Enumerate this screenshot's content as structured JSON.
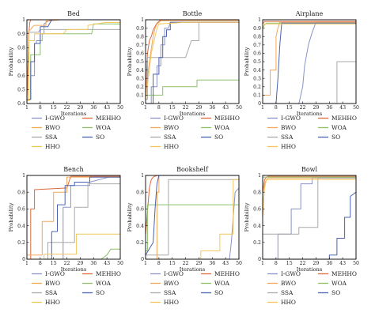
{
  "chart_data": [
    {
      "type": "line",
      "title": "Bed",
      "xlabel": "Iterations",
      "ylabel": "Probability",
      "xlim": [
        1,
        50
      ],
      "ylim": [
        0.4,
        1
      ],
      "xticks": [
        1,
        8,
        15,
        22,
        29,
        36,
        43,
        50
      ],
      "yticks": [
        0.4,
        0.5,
        0.6,
        0.7,
        0.8,
        0.9,
        1
      ],
      "ytick_labels": [
        "0.4",
        "0.5",
        "0.6",
        "0.7",
        "0.8",
        "0.9",
        "1"
      ],
      "series": [
        {
          "name": "I-GWO",
          "x": [
            1,
            3,
            3,
            5,
            5,
            6,
            6,
            8,
            8,
            10,
            10,
            12,
            14,
            50
          ],
          "y": [
            0.43,
            0.43,
            0.6,
            0.6,
            0.83,
            0.83,
            0.85,
            0.85,
            0.9,
            0.9,
            0.97,
            0.99,
            1,
            1
          ]
        },
        {
          "name": "MEHHO",
          "x": [
            1,
            2,
            2.5,
            3,
            50
          ],
          "y": [
            0.42,
            0.9,
            0.98,
            1,
            1
          ]
        },
        {
          "name": "BWO",
          "x": [
            1,
            2,
            2,
            3,
            4,
            5,
            11,
            11,
            19,
            50
          ],
          "y": [
            0.42,
            0.42,
            0.92,
            0.93,
            0.95,
            0.96,
            0.96,
            0.99,
            1,
            1
          ]
        },
        {
          "name": "WOA",
          "x": [
            1,
            3,
            3,
            8,
            8,
            9,
            9,
            35,
            36,
            50
          ],
          "y": [
            0.43,
            0.43,
            0.75,
            0.75,
            0.85,
            0.85,
            0.9,
            0.9,
            0.97,
            0.97
          ]
        },
        {
          "name": "SSA",
          "x": [
            1,
            7,
            8,
            50
          ],
          "y": [
            0.91,
            0.91,
            0.93,
            0.93
          ]
        },
        {
          "name": "SO",
          "x": [
            1,
            3,
            3,
            5,
            5,
            8,
            8,
            12,
            14,
            50
          ],
          "y": [
            0.43,
            0.43,
            0.7,
            0.7,
            0.83,
            0.83,
            0.95,
            0.95,
            1,
            1
          ]
        },
        {
          "name": "HHO",
          "x": [
            1,
            2,
            2,
            5,
            5,
            20,
            22,
            33,
            33,
            42,
            50
          ],
          "y": [
            0.42,
            0.42,
            0.85,
            0.85,
            0.9,
            0.9,
            0.93,
            0.93,
            0.96,
            0.98,
            0.98
          ]
        }
      ]
    },
    {
      "type": "line",
      "title": "Bottle",
      "xlabel": "Iterations",
      "ylabel": "Probability",
      "xlim": [
        1,
        50
      ],
      "ylim": [
        0,
        1
      ],
      "xticks": [
        1,
        8,
        15,
        22,
        29,
        36,
        43,
        50
      ],
      "yticks": [
        0,
        0.1,
        0.2,
        0.3,
        0.4,
        0.5,
        0.6,
        0.7,
        0.8,
        0.9,
        1
      ],
      "ytick_labels": [
        "0",
        "0.1",
        "0.2",
        "0.3",
        "0.4",
        "0.5",
        "0.6",
        "0.7",
        "0.8",
        "0.9",
        "1"
      ],
      "series": [
        {
          "name": "I-GWO",
          "x": [
            1,
            4,
            4,
            7,
            7,
            9,
            9,
            11,
            11,
            13,
            14,
            50
          ],
          "y": [
            0,
            0,
            0.2,
            0.2,
            0.45,
            0.45,
            0.7,
            0.7,
            0.9,
            0.9,
            0.97,
            0.97
          ]
        },
        {
          "name": "MEHHO",
          "x": [
            1,
            2,
            3,
            4,
            5,
            6,
            7,
            8,
            9,
            50
          ],
          "y": [
            0.1,
            0.6,
            0.75,
            0.8,
            0.88,
            0.92,
            0.96,
            0.98,
            1,
            1
          ]
        },
        {
          "name": "BWO",
          "x": [
            1,
            2,
            3,
            4,
            5,
            6,
            7,
            8,
            9,
            50
          ],
          "y": [
            0.05,
            0.3,
            0.5,
            0.65,
            0.8,
            0.9,
            0.95,
            0.97,
            0.99,
            0.99
          ]
        },
        {
          "name": "WOA",
          "x": [
            1,
            10,
            10,
            28,
            28,
            50
          ],
          "y": [
            0.1,
            0.1,
            0.2,
            0.2,
            0.28,
            0.28
          ]
        },
        {
          "name": "SSA",
          "x": [
            1,
            2,
            2,
            22,
            25,
            29,
            29,
            50
          ],
          "y": [
            0.05,
            0.05,
            0.55,
            0.55,
            0.75,
            0.75,
            0.97,
            0.97
          ]
        },
        {
          "name": "SO",
          "x": [
            1,
            5,
            5,
            8,
            8,
            10,
            10,
            12,
            12,
            14,
            14,
            50
          ],
          "y": [
            0,
            0,
            0.35,
            0.35,
            0.55,
            0.55,
            0.8,
            0.8,
            0.88,
            0.88,
            0.97,
            0.97
          ]
        },
        {
          "name": "HHO",
          "x": [
            1,
            3,
            4,
            6,
            7,
            8,
            22,
            50
          ],
          "y": [
            0.05,
            0.4,
            0.6,
            0.8,
            0.9,
            0.95,
            0.97,
            0.97
          ]
        }
      ]
    },
    {
      "type": "line",
      "title": "Airplane",
      "xlabel": "Iterations",
      "ylabel": "Probability",
      "xlim": [
        1,
        50
      ],
      "ylim": [
        0,
        1
      ],
      "xticks": [
        1,
        8,
        15,
        22,
        29,
        36,
        43,
        50
      ],
      "yticks": [
        0,
        0.1,
        0.2,
        0.3,
        0.4,
        0.5,
        0.6,
        0.7,
        0.8,
        0.9,
        1
      ],
      "ytick_labels": [
        "0",
        "0.1",
        "0.2",
        "0.3",
        "0.4",
        "0.5",
        "0.6",
        "0.7",
        "0.8",
        "0.9",
        "1"
      ],
      "series": [
        {
          "name": "I-GWO",
          "x": [
            1,
            20,
            22,
            23,
            25,
            27,
            29,
            50
          ],
          "y": [
            0,
            0,
            0.2,
            0.45,
            0.7,
            0.85,
            0.97,
            0.97
          ]
        },
        {
          "name": "MEHHO",
          "x": [
            1,
            2,
            50
          ],
          "y": [
            0.95,
            0.98,
            0.98
          ]
        },
        {
          "name": "BWO",
          "x": [
            1,
            5,
            5,
            8,
            8,
            9,
            10,
            50
          ],
          "y": [
            0.1,
            0.1,
            0.4,
            0.4,
            0.8,
            0.9,
            0.97,
            0.97
          ]
        },
        {
          "name": "WOA",
          "x": [
            1,
            2,
            3,
            50
          ],
          "y": [
            0.9,
            0.94,
            0.96,
            0.96
          ]
        },
        {
          "name": "SSA",
          "x": [
            1,
            40,
            40,
            50
          ],
          "y": [
            0,
            0,
            0.5,
            0.5
          ]
        },
        {
          "name": "SO",
          "x": [
            1,
            8,
            9,
            10,
            11,
            50
          ],
          "y": [
            0,
            0,
            0.3,
            0.7,
            0.96,
            0.96
          ]
        },
        {
          "name": "HHO",
          "x": [
            1,
            2,
            50
          ],
          "y": [
            0.9,
            0.95,
            0.95
          ]
        }
      ]
    },
    {
      "type": "line",
      "title": "Bench",
      "xlabel": "Iterations",
      "ylabel": "Probability",
      "xlim": [
        1,
        50
      ],
      "ylim": [
        0,
        1
      ],
      "xticks": [
        1,
        8,
        15,
        22,
        29,
        36,
        43,
        50
      ],
      "yticks": [
        0,
        0.2,
        0.4,
        0.6,
        0.8,
        1
      ],
      "ytick_labels": [
        "0",
        "0.2",
        "0.4",
        "0.6",
        "0.8",
        "1"
      ],
      "series": [
        {
          "name": "I-GWO",
          "x": [
            1,
            20,
            20,
            24,
            24,
            34,
            34,
            44,
            50
          ],
          "y": [
            0,
            0,
            0.62,
            0.62,
            0.88,
            0.88,
            0.92,
            0.98,
            0.98
          ]
        },
        {
          "name": "MEHHO",
          "x": [
            1,
            3,
            3,
            5,
            5,
            22,
            24,
            50
          ],
          "y": [
            0,
            0,
            0.6,
            0.6,
            0.83,
            0.85,
            0.99,
            0.99
          ]
        },
        {
          "name": "BWO",
          "x": [
            1,
            9,
            9,
            15,
            15,
            22,
            22,
            50
          ],
          "y": [
            0.05,
            0.05,
            0.45,
            0.45,
            0.8,
            0.8,
            0.98,
            0.98
          ]
        },
        {
          "name": "WOA",
          "x": [
            1,
            40,
            43,
            45,
            50
          ],
          "y": [
            0,
            0,
            0.05,
            0.12,
            0.12
          ]
        },
        {
          "name": "SSA",
          "x": [
            1,
            12,
            12,
            26,
            26,
            33,
            33,
            50
          ],
          "y": [
            0,
            0,
            0.2,
            0.2,
            0.62,
            0.62,
            0.9,
            0.9
          ]
        },
        {
          "name": "SO",
          "x": [
            1,
            14,
            14,
            17,
            17,
            21,
            21,
            26,
            26,
            34,
            34,
            50
          ],
          "y": [
            0,
            0,
            0.33,
            0.33,
            0.65,
            0.65,
            0.88,
            0.88,
            0.92,
            0.92,
            0.98,
            0.98
          ]
        },
        {
          "name": "HHO",
          "x": [
            1,
            10,
            10,
            27,
            27,
            50
          ],
          "y": [
            0,
            0,
            0.06,
            0.06,
            0.3,
            0.3
          ]
        }
      ]
    },
    {
      "type": "line",
      "title": "Bookshelf",
      "xlabel": "Iterations",
      "ylabel": "Probability",
      "xlim": [
        1,
        50
      ],
      "ylim": [
        0,
        1
      ],
      "xticks": [
        1,
        8,
        15,
        22,
        29,
        36,
        43,
        50
      ],
      "yticks": [
        0,
        0.2,
        0.4,
        0.6,
        0.8,
        1
      ],
      "ytick_labels": [
        "0",
        "0.2",
        "0.4",
        "0.6",
        "0.8",
        "1"
      ],
      "series": [
        {
          "name": "I-GWO",
          "x": [
            1,
            45,
            46,
            47,
            48,
            50
          ],
          "y": [
            0,
            0,
            0.2,
            0.5,
            0.8,
            0.85
          ]
        },
        {
          "name": "MEHHO",
          "x": [
            1,
            3,
            4,
            5,
            7,
            50
          ],
          "y": [
            0.3,
            0.85,
            0.95,
            0.98,
            1,
            1
          ]
        },
        {
          "name": "BWO",
          "x": [
            1,
            7,
            7,
            8,
            8,
            50
          ],
          "y": [
            0,
            0,
            0.8,
            0.8,
            1,
            1
          ]
        },
        {
          "name": "WOA",
          "x": [
            1,
            2,
            2,
            50
          ],
          "y": [
            0.1,
            0.1,
            0.65,
            0.65
          ]
        },
        {
          "name": "SSA",
          "x": [
            1,
            13,
            13,
            50
          ],
          "y": [
            0.05,
            0.05,
            0.95,
            0.95
          ]
        },
        {
          "name": "SO",
          "x": [
            1,
            5,
            6,
            7,
            8,
            50
          ],
          "y": [
            0.05,
            0.2,
            0.6,
            0.9,
            1,
            1
          ]
        },
        {
          "name": "HHO",
          "x": [
            1,
            30,
            30,
            40,
            40,
            47,
            47,
            50
          ],
          "y": [
            0,
            0,
            0.1,
            0.1,
            0.3,
            0.3,
            0.95,
            0.95
          ]
        }
      ]
    },
    {
      "type": "line",
      "title": "Bowl",
      "xlabel": "Iterations",
      "ylabel": "Probability",
      "xlim": [
        1,
        50
      ],
      "ylim": [
        0,
        1
      ],
      "xticks": [
        1,
        8,
        15,
        22,
        29,
        36,
        43,
        50
      ],
      "yticks": [
        0,
        0.2,
        0.4,
        0.6,
        0.8,
        1
      ],
      "ytick_labels": [
        "0",
        "0.2",
        "0.4",
        "0.6",
        "0.8",
        "1"
      ],
      "series": [
        {
          "name": "I-GWO",
          "x": [
            1,
            9,
            9,
            16,
            16,
            21,
            21,
            27,
            27,
            50
          ],
          "y": [
            0,
            0,
            0.3,
            0.3,
            0.6,
            0.6,
            0.9,
            0.9,
            0.97,
            0.97
          ]
        },
        {
          "name": "MEHHO",
          "x": [
            1,
            2,
            3,
            4,
            50
          ],
          "y": [
            0.8,
            0.95,
            0.98,
            0.99,
            0.99
          ]
        },
        {
          "name": "BWO",
          "x": [
            1,
            2,
            3,
            4,
            50
          ],
          "y": [
            0.5,
            0.9,
            0.95,
            0.97,
            0.97
          ]
        },
        {
          "name": "WOA",
          "x": [
            1,
            50
          ],
          "y": [
            0.98,
            0.98
          ]
        },
        {
          "name": "SSA",
          "x": [
            1,
            20,
            20,
            30,
            30,
            50
          ],
          "y": [
            0.3,
            0.3,
            0.38,
            0.38,
            0.97,
            0.97
          ]
        },
        {
          "name": "SO",
          "x": [
            1,
            36,
            36,
            40,
            40,
            44,
            44,
            47,
            47,
            50
          ],
          "y": [
            0,
            0,
            0.05,
            0.05,
            0.25,
            0.25,
            0.5,
            0.5,
            0.75,
            0.8
          ]
        },
        {
          "name": "HHO",
          "x": [
            1,
            2,
            3,
            50
          ],
          "y": [
            0.6,
            0.85,
            0.95,
            0.95
          ]
        }
      ]
    }
  ],
  "legend": [
    {
      "name": "I-GWO",
      "color": "#8a93c8"
    },
    {
      "name": "MEHHO",
      "color": "#e0693a"
    },
    {
      "name": "BWO",
      "color": "#f2a65a"
    },
    {
      "name": "WOA",
      "color": "#8cc069"
    },
    {
      "name": "SSA",
      "color": "#a9a9a9"
    },
    {
      "name": "SO",
      "color": "#4a63b0"
    },
    {
      "name": "HHO",
      "color": "#f2c75c"
    }
  ]
}
